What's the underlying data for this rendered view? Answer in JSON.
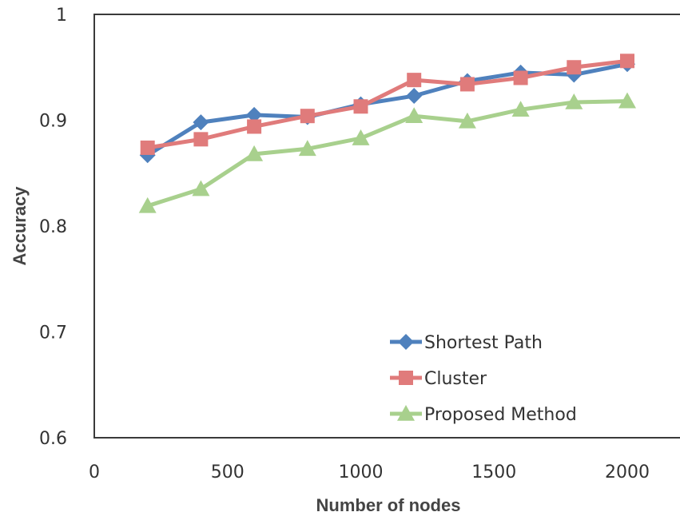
{
  "chart_data": {
    "type": "line",
    "xlabel": "Number of nodes",
    "ylabel": "Accuracy",
    "xlim": [
      0,
      2000
    ],
    "ylim": [
      0.6,
      1
    ],
    "xticks": [
      "0",
      "500",
      "1000",
      "1500",
      "2000"
    ],
    "yticks": [
      "0.6",
      "0.7",
      "0.8",
      "0.9",
      "1"
    ],
    "x": [
      200,
      400,
      600,
      800,
      1000,
      1200,
      1400,
      1600,
      1800,
      2000
    ],
    "grid": false,
    "legend_position": "bottom-right",
    "series": [
      {
        "name": "Shortest Path",
        "color": "#4f81bd",
        "marker": "diamond",
        "values": [
          0.867,
          0.898,
          0.905,
          0.903,
          0.915,
          0.923,
          0.937,
          0.945,
          0.943,
          0.953
        ]
      },
      {
        "name": "Cluster",
        "color": "#e07b7b",
        "marker": "square",
        "values": [
          0.874,
          0.882,
          0.894,
          0.904,
          0.913,
          0.938,
          0.934,
          0.94,
          0.95,
          0.956
        ]
      },
      {
        "name": "Proposed Method",
        "color": "#a8d08d",
        "marker": "triangle",
        "values": [
          0.819,
          0.835,
          0.868,
          0.873,
          0.883,
          0.904,
          0.899,
          0.91,
          0.917,
          0.918
        ]
      }
    ]
  }
}
